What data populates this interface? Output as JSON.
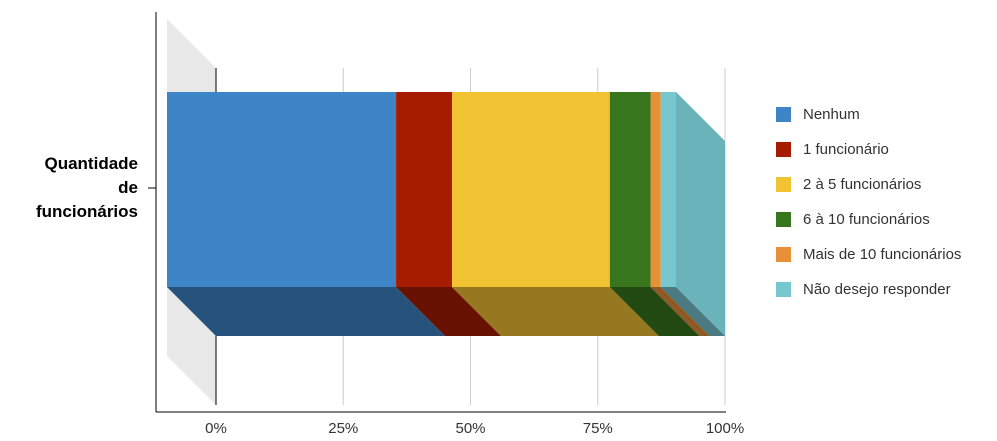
{
  "chart_data": {
    "type": "bar",
    "orientation": "horizontal",
    "stacked": "percent",
    "three_d": true,
    "categories": [
      "Quantidade de funcionários"
    ],
    "category_label_lines": [
      "Quantidade",
      "de",
      "funcionários"
    ],
    "series": [
      {
        "name": "Nenhum",
        "values": [
          45
        ],
        "color": "#3d85c6"
      },
      {
        "name": "1 funcionário",
        "values": [
          11
        ],
        "color": "#a61c00"
      },
      {
        "name": "2 à 5 funcionários",
        "values": [
          31
        ],
        "color": "#f1c232"
      },
      {
        "name": "6 à 10 funcionários",
        "values": [
          8
        ],
        "color": "#38761d"
      },
      {
        "name": "Mais de 10 funcionários",
        "values": [
          2
        ],
        "color": "#e69138"
      },
      {
        "name": "Não desejo responder",
        "values": [
          3
        ],
        "color": "#76c7d0"
      }
    ],
    "x_ticks": [
      "0%",
      "25%",
      "50%",
      "75%",
      "100%"
    ],
    "xlim": [
      0,
      100
    ],
    "grid": true,
    "legend_position": "right"
  }
}
